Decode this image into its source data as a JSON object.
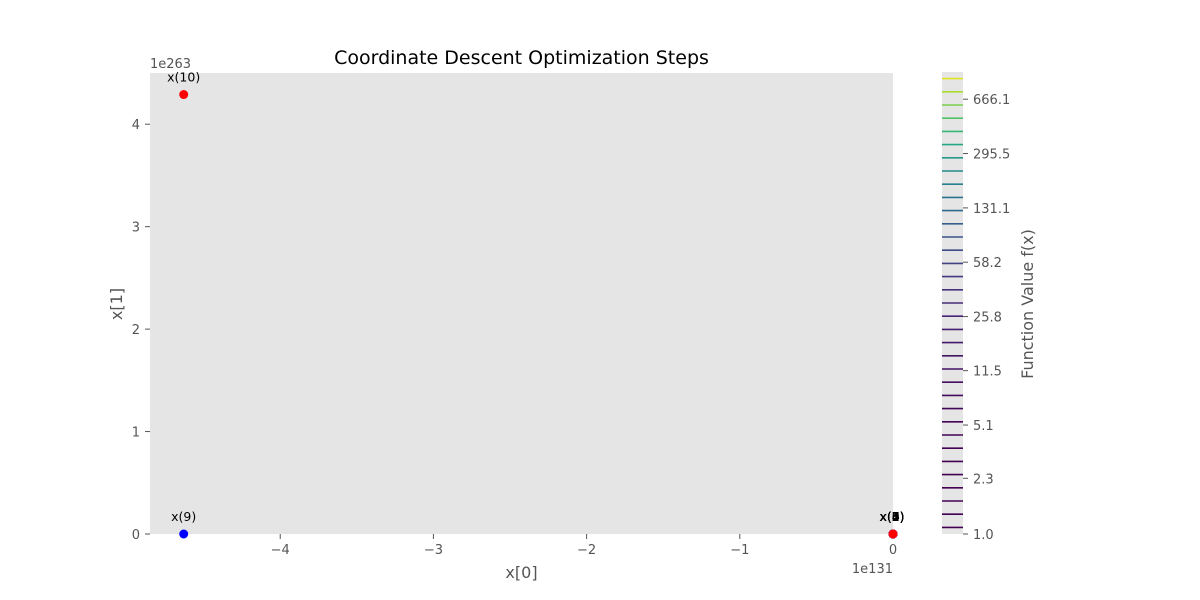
{
  "chart_data": {
    "type": "scatter",
    "title": "Coordinate Descent Optimization Steps",
    "xlabel": "x[0]",
    "ylabel": "x[1]",
    "x_offset_text": "1e131",
    "y_offset_text": "1e263",
    "xlim": [
      -4.85,
      0
    ],
    "ylim": [
      0,
      4.5
    ],
    "x_ticks": [
      -4,
      -3,
      -2,
      -1,
      0
    ],
    "x_tick_labels": [
      "−4",
      "−3",
      "−2",
      "−1",
      "0"
    ],
    "y_ticks": [
      0,
      1,
      2,
      3,
      4
    ],
    "y_tick_labels": [
      "0",
      "1",
      "2",
      "3",
      "4"
    ],
    "grid": false,
    "background": "#e5e5e5",
    "points": [
      {
        "label": "x(10)",
        "x": -4.63,
        "y": 4.29,
        "color": "#ff0000"
      },
      {
        "label": "x(9)",
        "x": -4.63,
        "y": 0.0,
        "color": "#0000ff"
      },
      {
        "label": "x(0)",
        "x": 0.0,
        "y": 0.0,
        "color": "#ff0000"
      },
      {
        "label": "x(1)",
        "x": 0.0,
        "y": 0.0,
        "color": "#0000ff"
      },
      {
        "label": "x(2)",
        "x": 0.0,
        "y": 0.0,
        "color": "#ff0000"
      },
      {
        "label": "x(3)",
        "x": 0.0,
        "y": 0.0,
        "color": "#0000ff"
      },
      {
        "label": "x(4)",
        "x": 0.0,
        "y": 0.0,
        "color": "#ff0000"
      },
      {
        "label": "x(5)",
        "x": 0.0,
        "y": 0.0,
        "color": "#0000ff"
      },
      {
        "label": "x(6)",
        "x": 0.0,
        "y": 0.0,
        "color": "#ff0000"
      },
      {
        "label": "x(7)",
        "x": 0.0,
        "y": 0.0,
        "color": "#0000ff"
      },
      {
        "label": "x(8)",
        "x": 0.0,
        "y": 0.0,
        "color": "#ff0000"
      }
    ],
    "colorbar": {
      "label": "Function Value f(x)",
      "scale": "log",
      "range": [
        1.0,
        1000
      ],
      "tick_values": [
        1.0,
        2.3,
        5.1,
        11.5,
        25.8,
        58.2,
        131.1,
        295.5,
        666.1
      ],
      "tick_labels": [
        "1.0",
        "2.3",
        "5.1",
        "11.5",
        "25.8",
        "58.2",
        "131.1",
        "295.5",
        "666.1"
      ],
      "colormap": "viridis",
      "background": "#e5e5e5"
    }
  }
}
